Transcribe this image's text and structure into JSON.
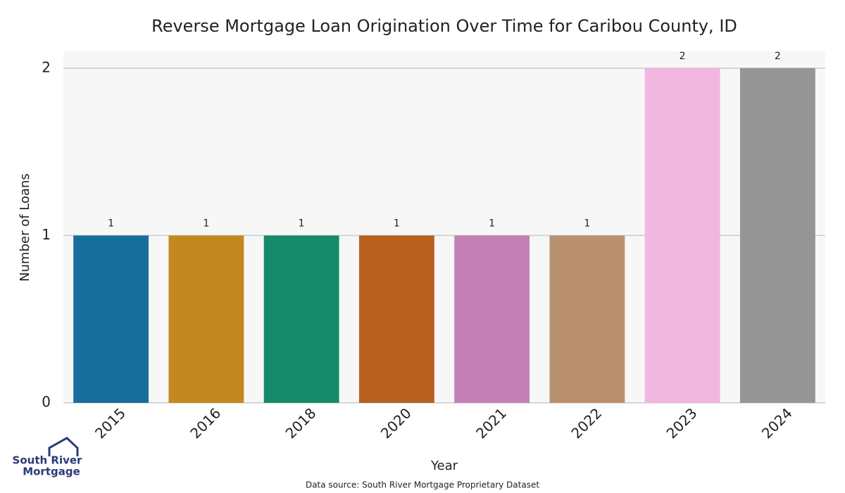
{
  "chart_data": {
    "type": "bar",
    "title": "Reverse Mortgage Loan Origination Over Time for Caribou County, ID",
    "x_label": "Year",
    "y_label": "Number of Loans",
    "categories": [
      "2015",
      "2016",
      "2018",
      "2020",
      "2021",
      "2022",
      "2023",
      "2024"
    ],
    "values": [
      1,
      1,
      1,
      1,
      1,
      1,
      2,
      2
    ],
    "colors": [
      "#176d9c",
      "#c38820",
      "#158b6a",
      "#b8601e",
      "#c481b5",
      "#b99170",
      "#f1b7de",
      "#959595"
    ],
    "ylim": [
      0,
      2.1
    ],
    "yticks": [
      0,
      1,
      2
    ],
    "grid": true,
    "source": "Data source: South River Mortgage Proprietary Dataset"
  },
  "logo": {
    "line1": "South River",
    "line2": "Mortgage"
  }
}
